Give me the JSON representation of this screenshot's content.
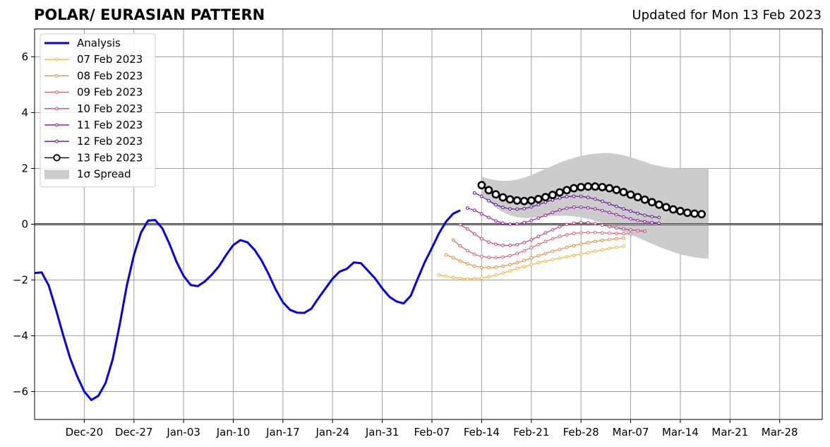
{
  "chart_data": {
    "type": "line",
    "title": "POLAR/ EURASIAN  PATTERN",
    "subtitle": "Updated for Mon 13 Feb 2023",
    "xlabel": "",
    "ylabel": "",
    "x_axis": {
      "type": "date",
      "range": [
        "2022-12-13",
        "2023-04-03"
      ],
      "ticks": [
        {
          "date": "2022-12-20",
          "label": "Dec-20"
        },
        {
          "date": "2022-12-27",
          "label": "Dec-27"
        },
        {
          "date": "2023-01-03",
          "label": "Jan-03"
        },
        {
          "date": "2023-01-10",
          "label": "Jan-10"
        },
        {
          "date": "2023-01-17",
          "label": "Jan-17"
        },
        {
          "date": "2023-01-24",
          "label": "Jan-24"
        },
        {
          "date": "2023-01-31",
          "label": "Jan-31"
        },
        {
          "date": "2023-02-07",
          "label": "Feb-07"
        },
        {
          "date": "2023-02-14",
          "label": "Feb-14"
        },
        {
          "date": "2023-02-21",
          "label": "Feb-21"
        },
        {
          "date": "2023-02-28",
          "label": "Feb-28"
        },
        {
          "date": "2023-03-07",
          "label": "Mar-07"
        },
        {
          "date": "2023-03-14",
          "label": "Mar-14"
        },
        {
          "date": "2023-03-21",
          "label": "Mar-21"
        },
        {
          "date": "2023-03-28",
          "label": "Mar-28"
        }
      ]
    },
    "y_axis": {
      "range": [
        -7,
        7
      ],
      "ticks": [
        {
          "value": -6,
          "label": "−6"
        },
        {
          "value": -4,
          "label": "−4"
        },
        {
          "value": -2,
          "label": "−2"
        },
        {
          "value": 0,
          "label": "0"
        },
        {
          "value": 2,
          "label": "2"
        },
        {
          "value": 4,
          "label": "4"
        },
        {
          "value": 6,
          "label": "6"
        }
      ]
    },
    "grid": true,
    "legend_position": "top-left",
    "series": [
      {
        "name": "Analysis",
        "color": "#0000ee",
        "marker": "none",
        "width": 3,
        "start": "2022-12-13",
        "values": [
          -1.75,
          -1.73,
          -2.2,
          -3.05,
          -3.95,
          -4.8,
          -5.45,
          -6.0,
          -6.3,
          -6.15,
          -5.7,
          -4.85,
          -3.6,
          -2.2,
          -1.1,
          -0.3,
          0.13,
          0.15,
          -0.15,
          -0.7,
          -1.35,
          -1.85,
          -2.18,
          -2.22,
          -2.05,
          -1.8,
          -1.5,
          -1.1,
          -0.75,
          -0.57,
          -0.65,
          -0.92,
          -1.3,
          -1.8,
          -2.35,
          -2.8,
          -3.07,
          -3.17,
          -3.18,
          -3.03,
          -2.65,
          -2.3,
          -1.95,
          -1.7,
          -1.6,
          -1.37,
          -1.4,
          -1.67,
          -1.95,
          -2.3,
          -2.6,
          -2.77,
          -2.84,
          -2.57,
          -1.95,
          -1.35,
          -0.85,
          -0.32,
          0.1,
          0.38,
          0.5
        ]
      },
      {
        "name": "07 Feb 2023",
        "color": "#fcb040",
        "marker": "dot",
        "width": 1.2,
        "start": "2023-02-08",
        "values": [
          -1.82,
          -1.87,
          -1.91,
          -1.94,
          -1.96,
          -1.95,
          -1.93,
          -1.88,
          -1.82,
          -1.75,
          -1.67,
          -1.59,
          -1.52,
          -1.45,
          -1.38,
          -1.32,
          -1.27,
          -1.22,
          -1.17,
          -1.12,
          -1.07,
          -1.02,
          -0.97,
          -0.92,
          -0.87,
          -0.83,
          -0.79
        ]
      },
      {
        "name": "08 Feb 2023",
        "color": "#f08a40",
        "marker": "dot",
        "width": 1.2,
        "start": "2023-02-09",
        "values": [
          -1.1,
          -1.2,
          -1.32,
          -1.42,
          -1.5,
          -1.55,
          -1.56,
          -1.54,
          -1.5,
          -1.45,
          -1.38,
          -1.3,
          -1.21,
          -1.13,
          -1.05,
          -0.97,
          -0.9,
          -0.83,
          -0.77,
          -0.71,
          -0.66,
          -0.62,
          -0.58,
          -0.55,
          -0.52,
          -0.5
        ]
      },
      {
        "name": "09 Feb 2023",
        "color": "#e3606a",
        "marker": "dot",
        "width": 1.2,
        "start": "2023-02-10",
        "values": [
          -0.57,
          -0.78,
          -0.95,
          -1.08,
          -1.16,
          -1.19,
          -1.2,
          -1.18,
          -1.13,
          -1.05,
          -0.95,
          -0.84,
          -0.73,
          -0.62,
          -0.52,
          -0.44,
          -0.38,
          -0.33,
          -0.31,
          -0.3,
          -0.3,
          -0.31,
          -0.32,
          -0.33,
          -0.34,
          -0.35
        ]
      },
      {
        "name": "10 Feb 2023",
        "color": "#c8407f",
        "marker": "dot",
        "width": 1.2,
        "start": "2023-02-11",
        "values": [
          -0.02,
          -0.17,
          -0.35,
          -0.52,
          -0.64,
          -0.72,
          -0.76,
          -0.76,
          -0.73,
          -0.66,
          -0.56,
          -0.44,
          -0.31,
          -0.2,
          -0.09,
          -0.01,
          0.04,
          0.06,
          0.05,
          0.02,
          -0.03,
          -0.08,
          -0.13,
          -0.17,
          -0.2,
          -0.23,
          -0.25
        ]
      },
      {
        "name": "11 Feb 2023",
        "color": "#9a18b0",
        "marker": "dot",
        "width": 1.2,
        "start": "2023-02-12",
        "values": [
          0.58,
          0.5,
          0.37,
          0.24,
          0.12,
          0.04,
          0.0,
          0.01,
          0.06,
          0.13,
          0.22,
          0.32,
          0.42,
          0.51,
          0.57,
          0.61,
          0.61,
          0.59,
          0.55,
          0.49,
          0.42,
          0.34,
          0.26,
          0.19,
          0.13,
          0.09,
          0.06,
          0.04
        ]
      },
      {
        "name": "12 Feb 2023",
        "color": "#5a10a0",
        "marker": "dot",
        "width": 1.2,
        "start": "2023-02-13",
        "values": [
          1.12,
          1.0,
          0.84,
          0.7,
          0.6,
          0.55,
          0.54,
          0.56,
          0.62,
          0.7,
          0.79,
          0.87,
          0.94,
          0.99,
          1.0,
          1.0,
          0.96,
          0.9,
          0.82,
          0.73,
          0.64,
          0.55,
          0.47,
          0.39,
          0.32,
          0.27,
          0.24
        ]
      },
      {
        "name": "13 Feb 2023",
        "color": "#000000",
        "marker": "open-circle",
        "width": 1.5,
        "start": "2023-02-14",
        "values": [
          1.4,
          1.22,
          1.07,
          0.96,
          0.89,
          0.85,
          0.83,
          0.85,
          0.9,
          0.97,
          1.05,
          1.14,
          1.22,
          1.29,
          1.33,
          1.35,
          1.35,
          1.33,
          1.29,
          1.23,
          1.15,
          1.06,
          0.97,
          0.88,
          0.79,
          0.7,
          0.61,
          0.53,
          0.47,
          0.41,
          0.38,
          0.36
        ]
      }
    ],
    "spread": {
      "name": "1σ Spread",
      "color": "#cccccc",
      "start": "2023-02-14",
      "upper": [
        1.7,
        1.63,
        1.58,
        1.55,
        1.56,
        1.6,
        1.67,
        1.76,
        1.87,
        1.99,
        2.1,
        2.21,
        2.3,
        2.38,
        2.45,
        2.5,
        2.53,
        2.55,
        2.55,
        2.52,
        2.47,
        2.4,
        2.32,
        2.23,
        2.15,
        2.09,
        2.04,
        2.01,
        2.0,
        2.0,
        2.0,
        2.0,
        2.0
      ],
      "lower": [
        1.1,
        0.82,
        0.6,
        0.43,
        0.32,
        0.25,
        0.22,
        0.22,
        0.25,
        0.28,
        0.3,
        0.3,
        0.3,
        0.28,
        0.24,
        0.19,
        0.12,
        0.04,
        -0.05,
        -0.15,
        -0.26,
        -0.37,
        -0.48,
        -0.59,
        -0.7,
        -0.81,
        -0.91,
        -1.0,
        -1.08,
        -1.14,
        -1.19,
        -1.22,
        -1.23
      ]
    }
  }
}
